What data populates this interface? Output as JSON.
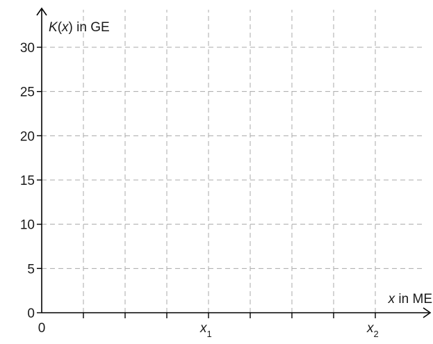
{
  "chart_data": {
    "type": "line",
    "series": [],
    "xlabel_var": "x",
    "xlabel_rest": " in ME",
    "ylabel_var": "K",
    "ylabel_paren_open": "(",
    "ylabel_paren_var": "x",
    "ylabel_paren_close": ")",
    "ylabel_rest": " in GE",
    "xlim": [
      0,
      8
    ],
    "ylim": [
      0,
      30
    ],
    "grid": true,
    "y_ticks": [
      {
        "value": 0,
        "label": "0"
      },
      {
        "value": 5,
        "label": "5"
      },
      {
        "value": 10,
        "label": "10"
      },
      {
        "value": 15,
        "label": "15"
      },
      {
        "value": 20,
        "label": "20"
      },
      {
        "value": 25,
        "label": "25"
      },
      {
        "value": 30,
        "label": "30"
      }
    ],
    "x_ticks": [
      {
        "value": 0,
        "label": "0",
        "var": "",
        "sub": ""
      },
      {
        "value": 1,
        "label": "",
        "var": "",
        "sub": ""
      },
      {
        "value": 2,
        "label": "",
        "var": "",
        "sub": ""
      },
      {
        "value": 3,
        "label": "",
        "var": "",
        "sub": ""
      },
      {
        "value": 4,
        "label": "",
        "var": "x",
        "sub": "1"
      },
      {
        "value": 5,
        "label": "",
        "var": "",
        "sub": ""
      },
      {
        "value": 6,
        "label": "",
        "var": "",
        "sub": ""
      },
      {
        "value": 7,
        "label": "",
        "var": "",
        "sub": ""
      },
      {
        "value": 8,
        "label": "",
        "var": "x",
        "sub": "2"
      }
    ]
  }
}
